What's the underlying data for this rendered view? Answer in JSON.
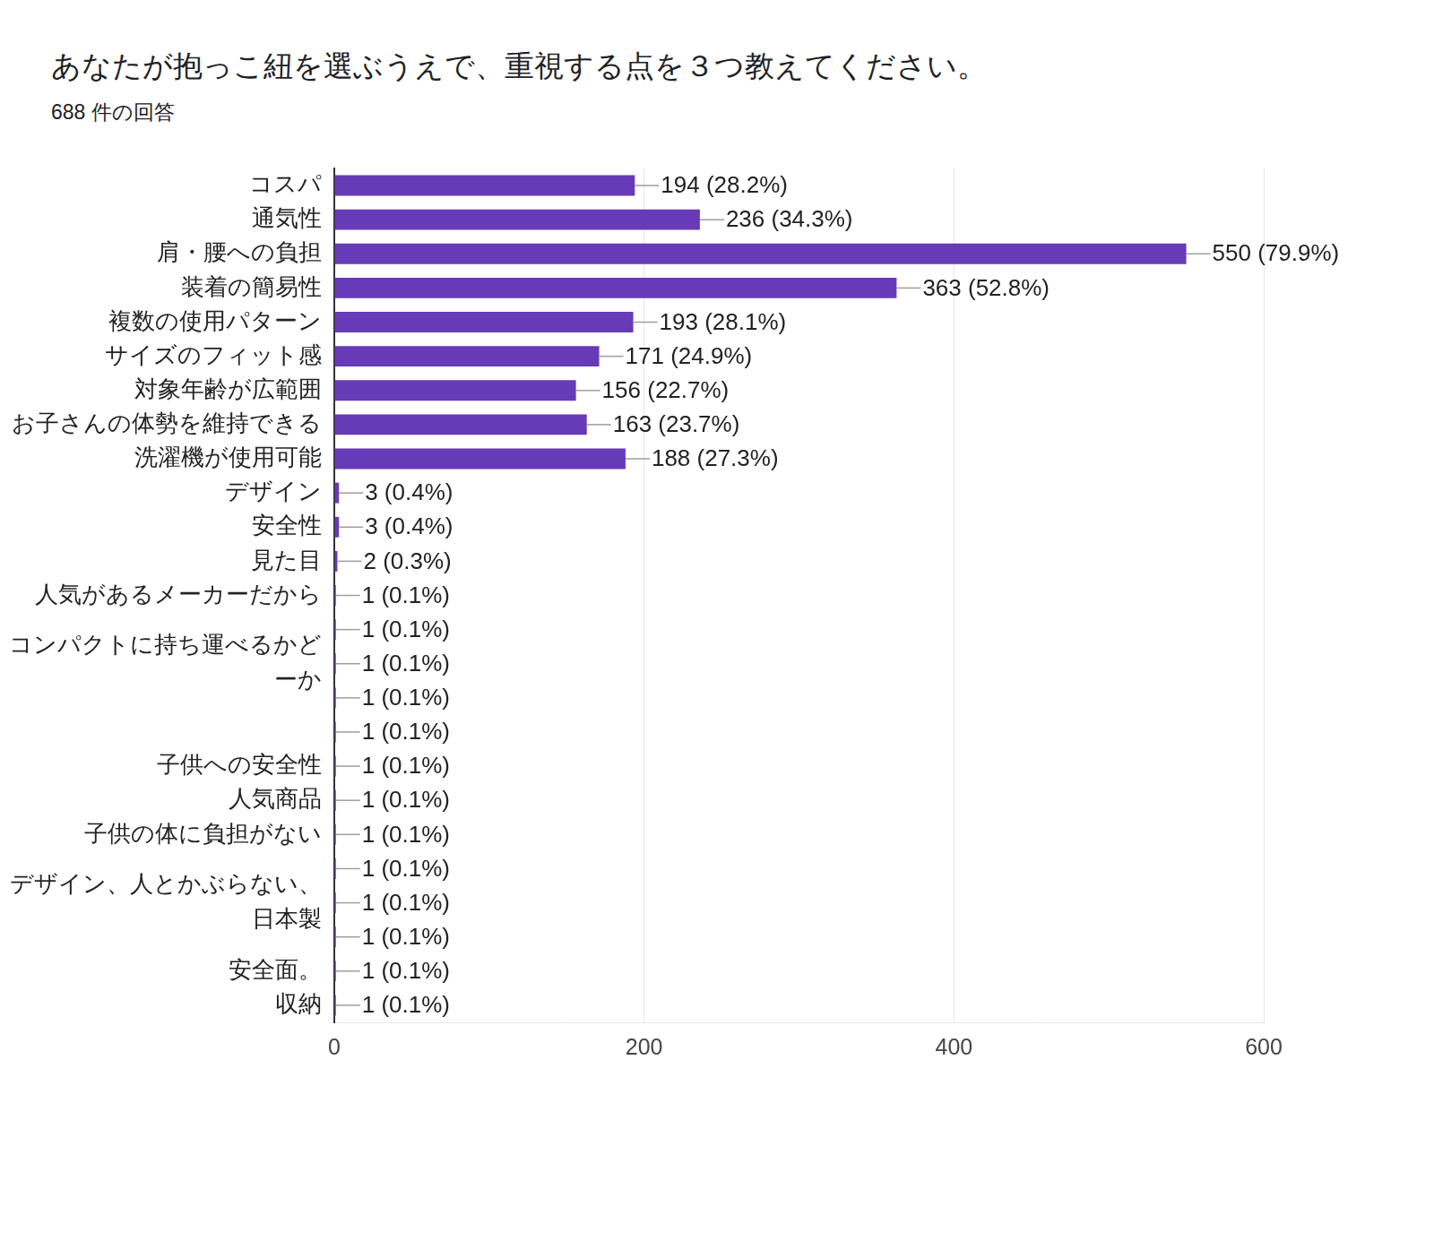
{
  "chart_data": {
    "type": "bar",
    "title": "あなたが抱っこ紐を選ぶうえで、重視する点を３つ教えてください。",
    "subtitle": "688 件の回答",
    "orientation": "horizontal",
    "categories": [
      "コスパ",
      "通気性",
      "肩・腰への負担",
      "装着の簡易性",
      "複数の使用パターン",
      "サイズのフィット感",
      "対象年齢が広範囲",
      "お子さんの体勢を維持できる",
      "洗濯機が使用可能",
      "デザイン",
      "安全性",
      "見た目",
      "人気があるメーカーだから",
      null,
      "コンパクトに持ち運べるかどーか",
      null,
      null,
      "子供への安全性",
      "人気商品",
      "子供の体に負担がない",
      null,
      "デザイン、人とかぶらない、日本製",
      null,
      "安全面。",
      "収納"
    ],
    "values": [
      194,
      236,
      550,
      363,
      193,
      171,
      156,
      163,
      188,
      3,
      3,
      2,
      1,
      1,
      1,
      1,
      1,
      1,
      1,
      1,
      1,
      1,
      1,
      1,
      1
    ],
    "value_labels": [
      "194 (28.2%)",
      "236 (34.3%)",
      "550 (79.9%)",
      "363 (52.8%)",
      "193 (28.1%)",
      "171 (24.9%)",
      "156 (22.7%)",
      "163 (23.7%)",
      "188 (27.3%)",
      "3 (0.4%)",
      "3 (0.4%)",
      "2 (0.3%)",
      "1 (0.1%)",
      "1 (0.1%)",
      "1 (0.1%)",
      "1 (0.1%)",
      "1 (0.1%)",
      "1 (0.1%)",
      "1 (0.1%)",
      "1 (0.1%)",
      "1 (0.1%)",
      "1 (0.1%)",
      "1 (0.1%)",
      "1 (0.1%)",
      "1 (0.1%)"
    ],
    "color": "#673ab7",
    "xlim": [
      0,
      600
    ],
    "xticks": [
      0,
      200,
      400,
      600
    ],
    "grid": true,
    "data_labels": true
  }
}
